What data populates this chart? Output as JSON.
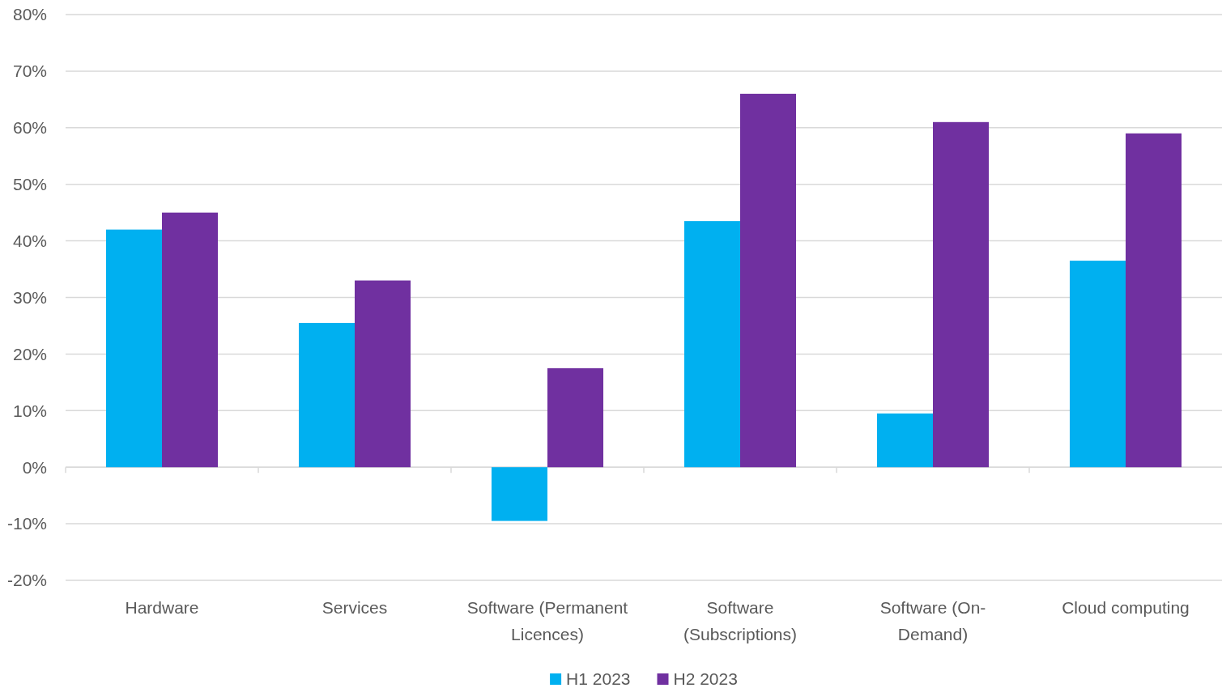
{
  "chart_data": {
    "type": "bar",
    "categories": [
      "Hardware",
      "Services",
      "Software (Permanent Licences)",
      "Software (Subscriptions)",
      "Software (On-Demand)",
      "Cloud computing"
    ],
    "series": [
      {
        "name": "H1 2023",
        "color": "#00b0f0",
        "values": [
          42,
          25.5,
          -9.5,
          43.5,
          9.5,
          36.5
        ]
      },
      {
        "name": "H2 2023",
        "color": "#7030a0",
        "values": [
          45,
          33,
          17.5,
          66,
          61,
          59
        ]
      }
    ],
    "ylim": [
      -20,
      80
    ],
    "yticks": [
      {
        "value": -20,
        "label": "-20%"
      },
      {
        "value": -10,
        "label": "-10%"
      },
      {
        "value": 0,
        "label": "0%"
      },
      {
        "value": 10,
        "label": "10%"
      },
      {
        "value": 20,
        "label": "20%"
      },
      {
        "value": 30,
        "label": "30%"
      },
      {
        "value": 40,
        "label": "40%"
      },
      {
        "value": 50,
        "label": "50%"
      },
      {
        "value": 60,
        "label": "60%"
      },
      {
        "value": 70,
        "label": "70%"
      },
      {
        "value": 80,
        "label": "80%"
      }
    ],
    "grid": "y",
    "legend": "bottom"
  }
}
